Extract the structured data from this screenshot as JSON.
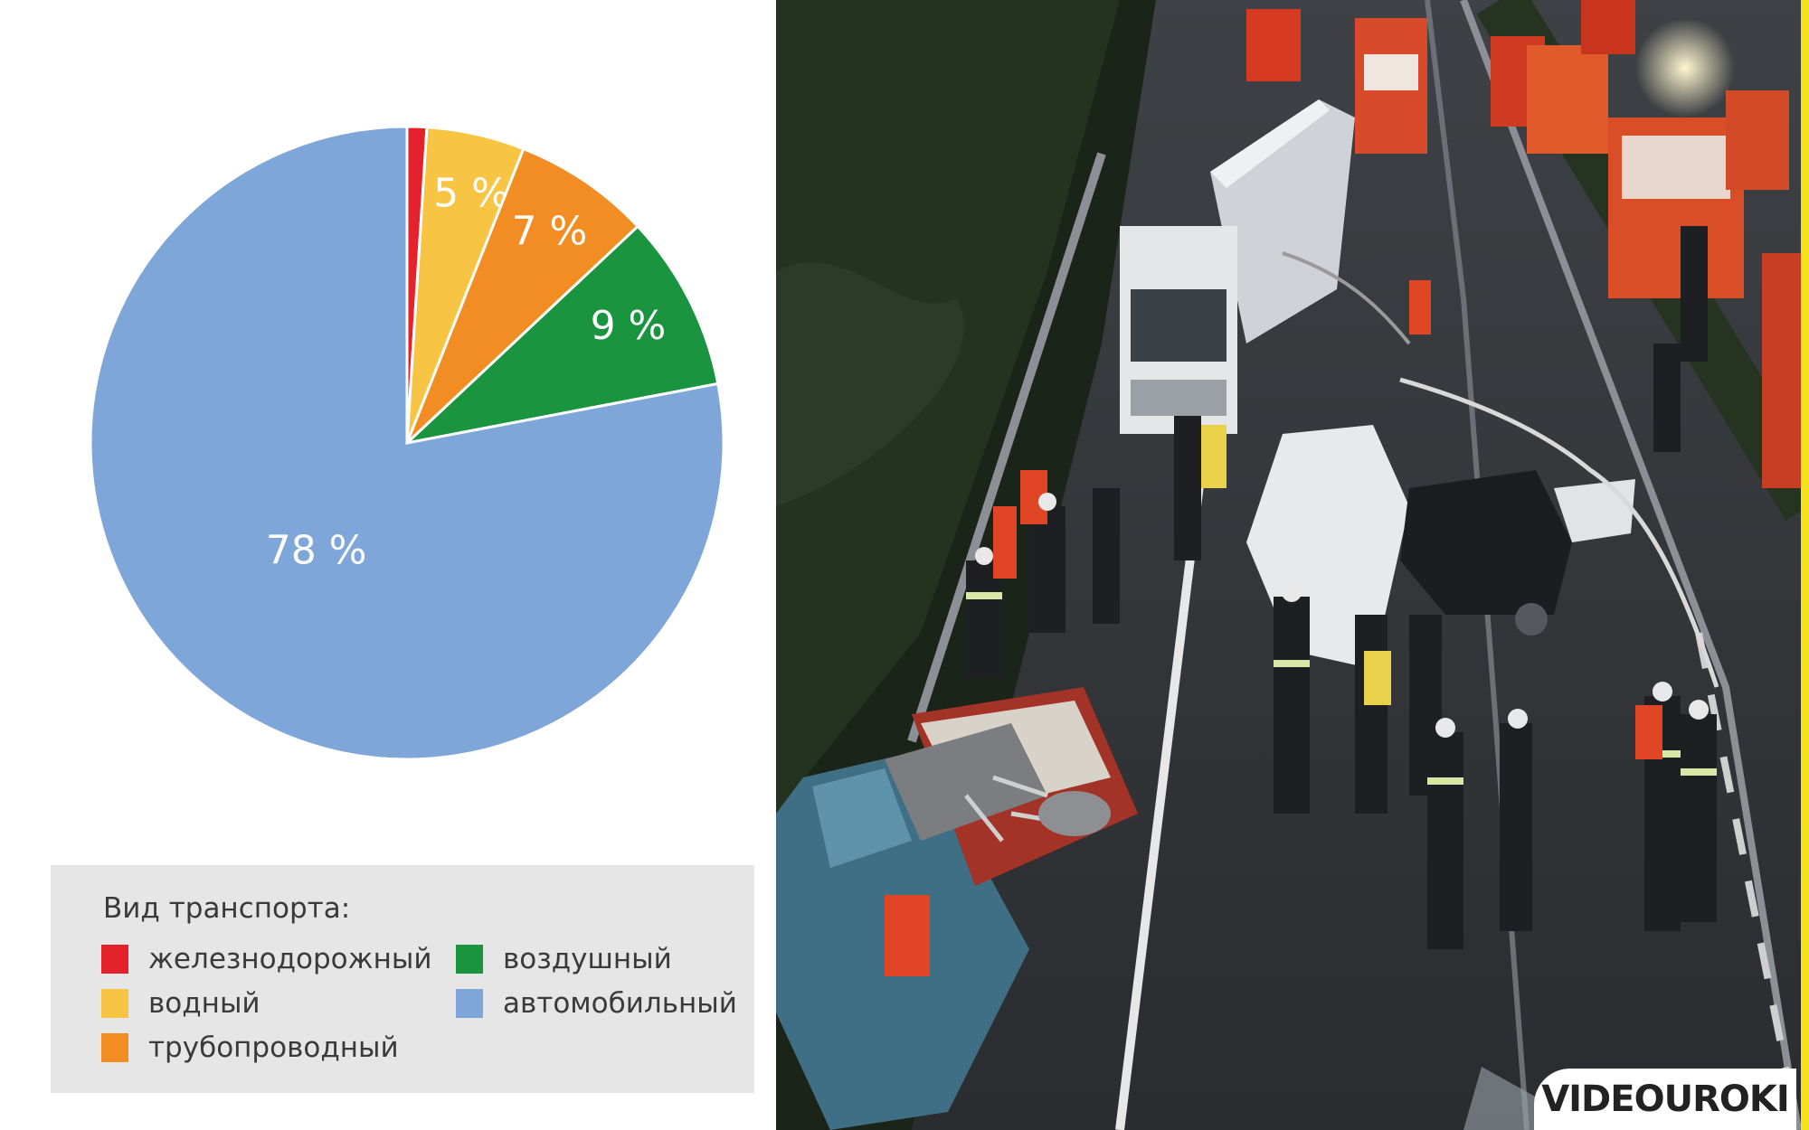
{
  "chart_data": {
    "type": "pie",
    "title": "",
    "legend_title": "Вид транспорта:",
    "legend_placement": "bottom",
    "slices": [
      {
        "name": "железнодорожный",
        "value": 1,
        "label": "1 %",
        "color": "#e3222b"
      },
      {
        "name": "водный",
        "value": 5,
        "label": "5 %",
        "color": "#f7c543"
      },
      {
        "name": "трубопроводный",
        "value": 7,
        "label": "7 %",
        "color": "#f18d22"
      },
      {
        "name": "воздушный",
        "value": 9,
        "label": "9 %",
        "color": "#1b9440"
      },
      {
        "name": "автомобильный",
        "value": 78,
        "label": "78 %",
        "color": "#7fa6d8"
      }
    ]
  },
  "legend": {
    "title": "Вид транспорта:",
    "items": [
      {
        "label": "железнодорожный",
        "color": "#e3222b"
      },
      {
        "label": "водный",
        "color": "#f7c543"
      },
      {
        "label": "трубопроводный",
        "color": "#f18d22"
      },
      {
        "label": "воздушный",
        "color": "#1b9440"
      },
      {
        "label": "автомобильный",
        "color": "#7fa6d8"
      }
    ]
  },
  "photo": {
    "subject": "road-accident-photo",
    "watermark": "VIDEOUROKI"
  }
}
